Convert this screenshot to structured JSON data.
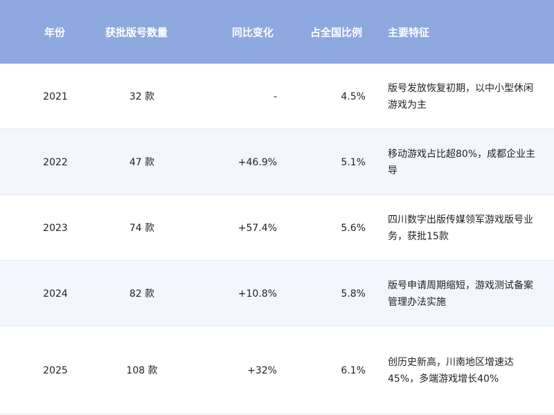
{
  "colors": {
    "header_bg": "#8ea8e0",
    "alt_row_bg": "#f3f6fc"
  },
  "headers": [
    "年份",
    "获批版号数量",
    "同比变化",
    "占全国比例",
    "主要特征"
  ],
  "rows": [
    {
      "year": "2021",
      "count": "32 款",
      "yoy": "-",
      "share": "4.5%",
      "feature": "版号发放恢复初期，以中小型休闲游戏为主"
    },
    {
      "year": "2022",
      "count": "47 款",
      "yoy": "+46.9%",
      "share": "5.1%",
      "feature": "移动游戏占比超80%，成都企业主导"
    },
    {
      "year": "2023",
      "count": "74 款",
      "yoy": "+57.4%",
      "share": "5.6%",
      "feature": "四川数字出版传媒领军游戏版号业务，获批15款"
    },
    {
      "year": "2024",
      "count": "82 款",
      "yoy": "+10.8%",
      "share": "5.8%",
      "feature": "版号申请周期缩短，游戏测试备案管理办法实施"
    },
    {
      "year": "2025",
      "count": "108 款",
      "yoy": "+32%",
      "share": "6.1%",
      "feature": "创历史新高，川南地区增速达45%，多端游戏增长40%"
    }
  ]
}
